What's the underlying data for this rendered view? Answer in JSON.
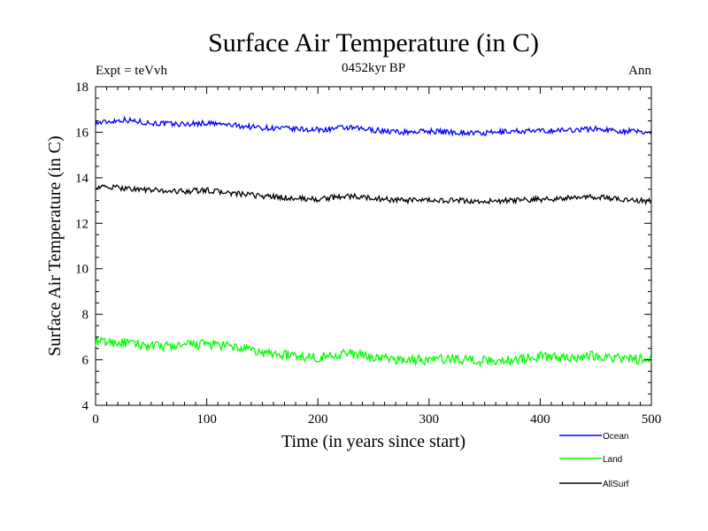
{
  "chart_data": {
    "type": "line",
    "title": "Surface Air Temperature (in C)",
    "subtitle": "0452kyr BP",
    "annotation_left": "Expt = teVvh",
    "annotation_right": "Ann",
    "xlabel": "Time (in years since start)",
    "ylabel": "Surface Air Temperature (in C)",
    "xlim": [
      0,
      500
    ],
    "ylim": [
      4,
      18
    ],
    "x_ticks": [
      0,
      100,
      200,
      300,
      400,
      500
    ],
    "y_ticks": [
      4,
      6,
      8,
      10,
      12,
      14,
      16,
      18
    ],
    "grid": false,
    "legend_placement": "bottom-right, below plot",
    "x": [
      0,
      25,
      50,
      75,
      100,
      125,
      150,
      175,
      200,
      225,
      250,
      275,
      300,
      325,
      350,
      375,
      400,
      425,
      450,
      475,
      500
    ],
    "series": [
      {
        "name": "Ocean",
        "color": "#0000ff",
        "values": [
          16.4,
          16.55,
          16.4,
          16.35,
          16.4,
          16.3,
          16.2,
          16.15,
          16.1,
          16.2,
          16.1,
          16.0,
          16.05,
          16.0,
          15.95,
          16.05,
          16.05,
          16.1,
          16.15,
          16.05,
          16.0
        ]
      },
      {
        "name": "Land",
        "color": "#00ff00",
        "values": [
          6.8,
          6.75,
          6.6,
          6.6,
          6.7,
          6.55,
          6.3,
          6.2,
          6.1,
          6.3,
          6.1,
          6.0,
          6.0,
          6.05,
          5.95,
          6.0,
          6.15,
          6.1,
          6.2,
          6.05,
          6.0
        ]
      },
      {
        "name": "AllSurf",
        "color": "#000000",
        "values": [
          13.6,
          13.55,
          13.45,
          13.4,
          13.45,
          13.3,
          13.2,
          13.1,
          13.05,
          13.2,
          13.1,
          13.0,
          13.0,
          13.0,
          12.95,
          13.0,
          13.05,
          13.1,
          13.15,
          13.05,
          12.95
        ]
      }
    ]
  }
}
